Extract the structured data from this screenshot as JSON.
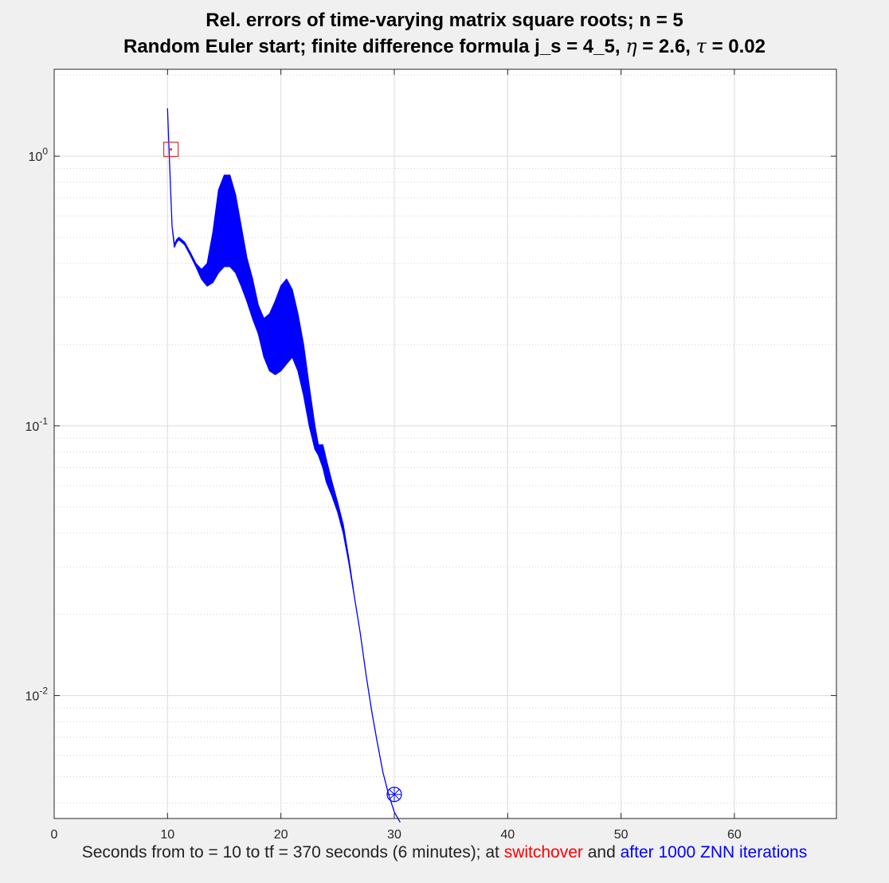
{
  "title": {
    "line1": "Rel. errors of time-varying matrix square roots; n = 5",
    "line2_prefix": "Random Euler start; finite difference formula  j_s = 4_5, ",
    "eta_symbol": "η",
    "eta_text": " = 2.6, ",
    "tau_symbol": "τ",
    "tau_text": " = 0.02"
  },
  "xlabel": {
    "prefix": "Seconds from to = 10 to tf = 370  seconds  (6 minutes); at ",
    "switchover": "switchover",
    "middle": " and  ",
    "after": "after 1000 ZNN iterations"
  },
  "colors": {
    "series": "#0000ff",
    "switchover_marker": "#e03030",
    "grid": "#dcdcdc",
    "minor_grid": "#d0d0d0",
    "axes_bg": "#ffffff"
  },
  "chart_data": {
    "type": "line",
    "yscale": "log",
    "xlim": [
      0,
      69
    ],
    "ylim": [
      0.0035,
      2.1
    ],
    "grid": true,
    "xticks": [
      0,
      10,
      20,
      30,
      40,
      50,
      60
    ],
    "xtick_labels": [
      "0",
      "10",
      "20",
      "30",
      "40",
      "50",
      "60"
    ],
    "yticks": [
      0.01,
      0.1,
      1
    ],
    "ytick_labels": [
      {
        "base": "10",
        "exp": "-2"
      },
      {
        "base": "10",
        "exp": "-1"
      },
      {
        "base": "10",
        "exp": "0"
      }
    ],
    "series": [
      {
        "style": "oscillating band",
        "color": "#0000ff",
        "x": [
          10.0,
          10.15,
          10.4,
          10.6,
          10.8,
          11.0,
          11.5,
          12.0,
          12.5,
          13.0,
          13.5,
          14.0,
          14.5,
          15.0,
          15.5,
          16.0,
          16.5,
          17.0,
          17.5,
          18.0,
          18.5,
          19.0,
          19.5,
          20.0,
          20.5,
          21.0,
          21.5,
          22.0,
          22.5,
          23.0,
          23.3,
          23.7,
          24.0,
          24.5,
          25.0,
          25.5,
          26.0,
          26.5,
          27.0,
          27.5,
          28.0,
          28.5,
          29.0,
          29.5,
          30.0,
          30.5
        ],
        "upper": [
          1.5,
          1.0,
          0.55,
          0.47,
          0.49,
          0.5,
          0.48,
          0.44,
          0.4,
          0.38,
          0.4,
          0.52,
          0.75,
          0.85,
          0.85,
          0.72,
          0.55,
          0.42,
          0.35,
          0.28,
          0.25,
          0.26,
          0.29,
          0.33,
          0.35,
          0.32,
          0.26,
          0.2,
          0.14,
          0.1,
          0.085,
          0.085,
          0.075,
          0.062,
          0.052,
          0.043,
          0.032,
          0.023,
          0.017,
          0.012,
          0.0088,
          0.0067,
          0.0052,
          0.0043,
          0.0037,
          0.0034
        ],
        "lower": [
          1.5,
          1.0,
          0.55,
          0.46,
          0.48,
          0.49,
          0.47,
          0.43,
          0.39,
          0.35,
          0.33,
          0.34,
          0.37,
          0.39,
          0.39,
          0.37,
          0.33,
          0.29,
          0.25,
          0.22,
          0.18,
          0.16,
          0.155,
          0.16,
          0.17,
          0.18,
          0.16,
          0.13,
          0.1,
          0.082,
          0.078,
          0.07,
          0.062,
          0.055,
          0.048,
          0.04,
          0.031,
          0.023,
          0.017,
          0.012,
          0.0088,
          0.0067,
          0.0052,
          0.0043,
          0.0037,
          0.0034
        ]
      }
    ],
    "markers": [
      {
        "name": "switchover",
        "symbol": "square",
        "x": 10.3,
        "y": 1.06,
        "color": "#e03030"
      },
      {
        "name": "after 1000 ZNN iterations",
        "symbol": "circled-asterisk",
        "x": 30.0,
        "y": 0.0043,
        "color": "#0000ff"
      }
    ]
  }
}
